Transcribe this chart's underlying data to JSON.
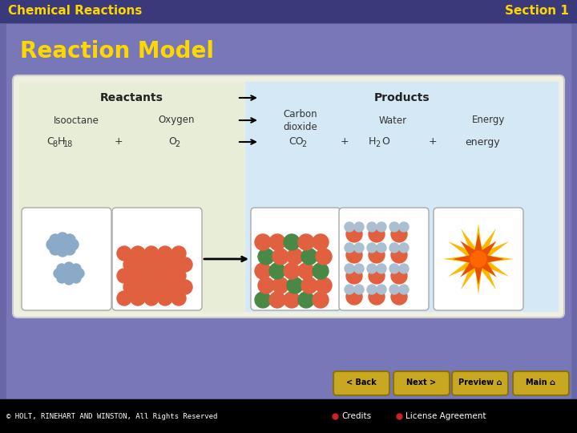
{
  "header_bg_color": "#3a3a7a",
  "header_text_color": "#ffd700",
  "header_left": "Chemical Reactions",
  "header_right": "Section 1",
  "slide_bg": "#6868a8",
  "slide_inner_bg": "#7878b8",
  "title_text": "Reaction Model",
  "title_color": "#ffd700",
  "content_bg": "#f0f0e0",
  "reactants_bg": "#e8edd8",
  "products_bg": "#d5e8f5",
  "footer_bg": "#000000",
  "footer_text_color": "#ffffff",
  "footer_text": "© HOLT, RINEHART AND WINSTON, All Rights Reserved",
  "credits_text": "Credits",
  "license_text": "License Agreement",
  "button_color": "#c8a820",
  "button_border_color": "#8a7010",
  "button_text_color": "#000000",
  "buttons": [
    "< Back",
    "Next >",
    "Preview",
    "Main"
  ],
  "dot_color": "#cc2222",
  "reactants_label": "Reactants",
  "products_label": "Products"
}
